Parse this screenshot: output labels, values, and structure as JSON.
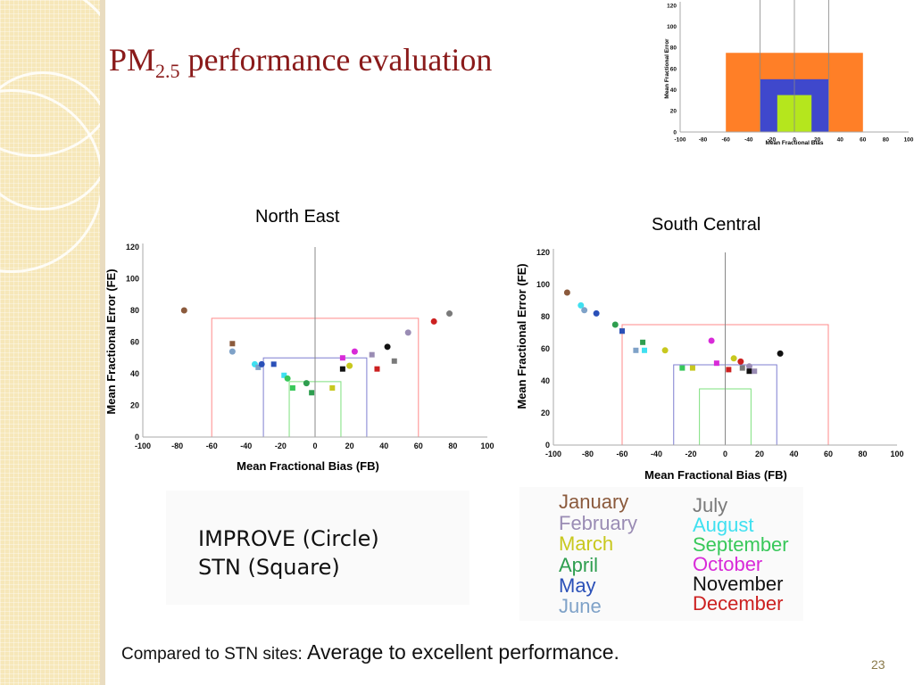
{
  "slide": {
    "title_main": "PM",
    "title_sub": "2.5",
    "title_rest": " performance evaluation",
    "footer_prefix": "Compared to STN sites: ",
    "footer_emphasis": "Average to excellent performance.",
    "page_number": "23"
  },
  "colors": {
    "title": "#8a1a1a",
    "goal_box": "#ff8a8a",
    "criteria_box": "#7f7fd0",
    "excellent_box": "#7ee07e",
    "reference_orange": "#ff7f27",
    "reference_blue": "#3f48cc",
    "reference_green": "#b5e61d"
  },
  "marker_legend": {
    "circle_label": "IMPROVE (Circle)",
    "square_label": "STN (Square)"
  },
  "month_legend": [
    {
      "label": "January",
      "color": "#8b5a3c"
    },
    {
      "label": "February",
      "color": "#9a8cb4"
    },
    {
      "label": "March",
      "color": "#c8c81e"
    },
    {
      "label": "April",
      "color": "#2e9e4f"
    },
    {
      "label": "May",
      "color": "#2a50b8"
    },
    {
      "label": "June",
      "color": "#7fa2c8"
    },
    {
      "label": "July",
      "color": "#7a7a7a"
    },
    {
      "label": "August",
      "color": "#3fe0f0"
    },
    {
      "label": "September",
      "color": "#38c85a"
    },
    {
      "label": "October",
      "color": "#d82ad8"
    },
    {
      "label": "November",
      "color": "#111111"
    },
    {
      "label": "December",
      "color": "#cc2020"
    }
  ],
  "chart_data": [
    {
      "id": "north_east",
      "type": "scatter",
      "title": "North East",
      "xlabel": "Mean Fractional Bias (FB)",
      "ylabel": "Mean Fractional Error (FE)",
      "xlim": [
        -100,
        100
      ],
      "ylim": [
        0,
        120
      ],
      "xticks": [
        "-100",
        "-80",
        "-60",
        "-40",
        "-20",
        "0",
        "20",
        "40",
        "60",
        "80",
        "100"
      ],
      "yticks": [
        "0",
        "20",
        "40",
        "60",
        "80",
        "100",
        "120"
      ],
      "goal_boxes": [
        {
          "fb": 60,
          "fe": 75,
          "color": "#ff8a8a"
        },
        {
          "fb": 30,
          "fe": 50,
          "color": "#7f7fd0"
        },
        {
          "fb": 15,
          "fe": 35,
          "color": "#7ee07e"
        }
      ],
      "points": [
        {
          "fb": -76,
          "fe": 80,
          "month": "January",
          "network": "IMPROVE"
        },
        {
          "fb": -48,
          "fe": 54,
          "month": "June",
          "network": "IMPROVE"
        },
        {
          "fb": -48,
          "fe": 59,
          "month": "January",
          "network": "STN"
        },
        {
          "fb": -35,
          "fe": 46,
          "month": "August",
          "network": "IMPROVE"
        },
        {
          "fb": -33,
          "fe": 44,
          "month": "June",
          "network": "STN"
        },
        {
          "fb": -31,
          "fe": 46,
          "month": "May",
          "network": "IMPROVE"
        },
        {
          "fb": -24,
          "fe": 46,
          "month": "May",
          "network": "STN"
        },
        {
          "fb": -18,
          "fe": 39,
          "month": "August",
          "network": "STN"
        },
        {
          "fb": -16,
          "fe": 37,
          "month": "September",
          "network": "IMPROVE"
        },
        {
          "fb": -13,
          "fe": 31,
          "month": "September",
          "network": "STN"
        },
        {
          "fb": -5,
          "fe": 34,
          "month": "April",
          "network": "IMPROVE"
        },
        {
          "fb": -2,
          "fe": 28,
          "month": "April",
          "network": "STN"
        },
        {
          "fb": 10,
          "fe": 31,
          "month": "March",
          "network": "STN"
        },
        {
          "fb": 16,
          "fe": 50,
          "month": "October",
          "network": "STN"
        },
        {
          "fb": 16,
          "fe": 43,
          "month": "November",
          "network": "STN"
        },
        {
          "fb": 20,
          "fe": 45,
          "month": "March",
          "network": "IMPROVE"
        },
        {
          "fb": 23,
          "fe": 54,
          "month": "October",
          "network": "IMPROVE"
        },
        {
          "fb": 33,
          "fe": 52,
          "month": "February",
          "network": "STN"
        },
        {
          "fb": 36,
          "fe": 43,
          "month": "December",
          "network": "STN"
        },
        {
          "fb": 42,
          "fe": 57,
          "month": "November",
          "network": "IMPROVE"
        },
        {
          "fb": 46,
          "fe": 48,
          "month": "July",
          "network": "STN"
        },
        {
          "fb": 54,
          "fe": 66,
          "month": "February",
          "network": "IMPROVE"
        },
        {
          "fb": 69,
          "fe": 73,
          "month": "December",
          "network": "IMPROVE"
        },
        {
          "fb": 78,
          "fe": 78,
          "month": "July",
          "network": "IMPROVE"
        }
      ]
    },
    {
      "id": "south_central",
      "type": "scatter",
      "title": "South Central",
      "xlabel": "Mean Fractional Bias (FB)",
      "ylabel": "Mean Fractional Error (FE)",
      "xlim": [
        -100,
        100
      ],
      "ylim": [
        0,
        120
      ],
      "xticks": [
        "-100",
        "-80",
        "-60",
        "-40",
        "-20",
        "0",
        "20",
        "40",
        "60",
        "80",
        "100"
      ],
      "yticks": [
        "0",
        "20",
        "40",
        "60",
        "80",
        "100",
        "120"
      ],
      "goal_boxes": [
        {
          "fb": 60,
          "fe": 75,
          "color": "#ff8a8a"
        },
        {
          "fb": 30,
          "fe": 50,
          "color": "#7f7fd0"
        },
        {
          "fb": 15,
          "fe": 35,
          "color": "#7ee07e"
        }
      ],
      "points": [
        {
          "fb": -92,
          "fe": 95,
          "month": "January",
          "network": "IMPROVE"
        },
        {
          "fb": -84,
          "fe": 87,
          "month": "August",
          "network": "IMPROVE"
        },
        {
          "fb": -82,
          "fe": 84,
          "month": "June",
          "network": "IMPROVE"
        },
        {
          "fb": -75,
          "fe": 82,
          "month": "May",
          "network": "IMPROVE"
        },
        {
          "fb": -64,
          "fe": 75,
          "month": "April",
          "network": "IMPROVE"
        },
        {
          "fb": -60,
          "fe": 71,
          "month": "January",
          "network": "STN"
        },
        {
          "fb": -60,
          "fe": 71,
          "month": "May",
          "network": "STN"
        },
        {
          "fb": -52,
          "fe": 59,
          "month": "June",
          "network": "STN"
        },
        {
          "fb": -48,
          "fe": 64,
          "month": "April",
          "network": "STN"
        },
        {
          "fb": -47,
          "fe": 59,
          "month": "August",
          "network": "STN"
        },
        {
          "fb": -35,
          "fe": 59,
          "month": "March",
          "network": "IMPROVE"
        },
        {
          "fb": -25,
          "fe": 48,
          "month": "September",
          "network": "STN"
        },
        {
          "fb": -19,
          "fe": 48,
          "month": "March",
          "network": "STN"
        },
        {
          "fb": -8,
          "fe": 65,
          "month": "October",
          "network": "IMPROVE"
        },
        {
          "fb": -5,
          "fe": 51,
          "month": "October",
          "network": "STN"
        },
        {
          "fb": 2,
          "fe": 47,
          "month": "December",
          "network": "STN"
        },
        {
          "fb": 5,
          "fe": 54,
          "month": "March",
          "network": "IMPROVE"
        },
        {
          "fb": 9,
          "fe": 52,
          "month": "December",
          "network": "IMPROVE"
        },
        {
          "fb": 10,
          "fe": 48,
          "month": "July",
          "network": "STN"
        },
        {
          "fb": 14,
          "fe": 49,
          "month": "February",
          "network": "IMPROVE"
        },
        {
          "fb": 14,
          "fe": 46,
          "month": "November",
          "network": "STN"
        },
        {
          "fb": 17,
          "fe": 46,
          "month": "February",
          "network": "STN"
        },
        {
          "fb": 32,
          "fe": 57,
          "month": "November",
          "network": "IMPROVE"
        }
      ]
    },
    {
      "id": "goal_reference",
      "type": "area",
      "title": "",
      "xlabel": "Mean Fractional Bias",
      "ylabel": "Mean Fractional Error",
      "xlim": [
        -100,
        100
      ],
      "ylim": [
        0,
        120
      ],
      "xticks": [
        "-100",
        "-80",
        "-60",
        "-40",
        "-20",
        "0",
        "20",
        "40",
        "60",
        "80",
        "100"
      ],
      "yticks": [
        "0",
        "20",
        "40",
        "60",
        "80",
        "100",
        "120"
      ],
      "zones": [
        {
          "fb": 60,
          "fe": 75,
          "color": "#ff7f27"
        },
        {
          "fb": 30,
          "fe": 50,
          "color": "#3f48cc"
        },
        {
          "fb": 15,
          "fe": 35,
          "color": "#b5e61d"
        }
      ],
      "vlines": [
        -30,
        0,
        30
      ]
    }
  ]
}
